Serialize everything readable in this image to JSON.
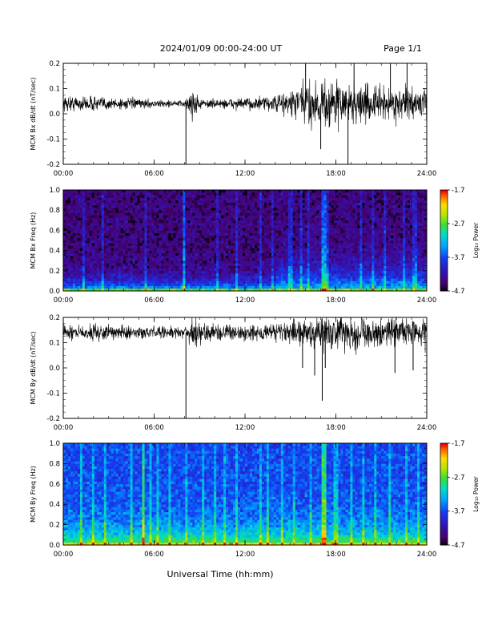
{
  "header": {
    "title": "2024/01/09  00:00-24:00 UT",
    "page": "Page 1/1"
  },
  "xlabel": "Universal Time (hh:mm)",
  "chart_data": [
    {
      "type": "line",
      "ylabel": "MCM Bx dB/dt (nT/sec)",
      "xlim": [
        0,
        24
      ],
      "ylim": [
        -0.2,
        0.2
      ],
      "x_ticks": [
        "00:00",
        "06:00",
        "12:00",
        "18:00",
        "24:00"
      ],
      "y_ticks": [
        "-0.2",
        "-0.1",
        "0.0",
        "0.1",
        "0.2"
      ],
      "y_tick_values": [
        -0.2,
        -0.1,
        0.0,
        0.1,
        0.2
      ],
      "baseline": 0.04,
      "amplitude_envelope": [
        {
          "x": 0,
          "amp": 0.03
        },
        {
          "x": 2,
          "amp": 0.028
        },
        {
          "x": 4,
          "amp": 0.022
        },
        {
          "x": 6,
          "amp": 0.014
        },
        {
          "x": 8,
          "amp": 0.012
        },
        {
          "x": 8.5,
          "amp": 0.06
        },
        {
          "x": 9.2,
          "amp": 0.015
        },
        {
          "x": 12,
          "amp": 0.022
        },
        {
          "x": 14,
          "amp": 0.03
        },
        {
          "x": 15.5,
          "amp": 0.07
        },
        {
          "x": 17,
          "amp": 0.1
        },
        {
          "x": 18,
          "amp": 0.09
        },
        {
          "x": 20,
          "amp": 0.07
        },
        {
          "x": 22,
          "amp": 0.06
        },
        {
          "x": 24,
          "amp": 0.05
        }
      ],
      "spikes": [
        {
          "x": 8.1,
          "y": -0.2
        },
        {
          "x": 16.0,
          "y": 0.2
        },
        {
          "x": 17.0,
          "y": -0.14
        },
        {
          "x": 18.8,
          "y": -0.2
        },
        {
          "x": 19.2,
          "y": 0.2
        },
        {
          "x": 21.6,
          "y": 0.2
        },
        {
          "x": 22.7,
          "y": 0.2
        }
      ]
    },
    {
      "type": "heatmap",
      "ylabel": "MCM Bx Freq (Hz)",
      "xlim": [
        0,
        24
      ],
      "ylim": [
        0,
        1.0
      ],
      "x_ticks": [
        "00:00",
        "06:00",
        "12:00",
        "18:00",
        "24:00"
      ],
      "y_ticks": [
        "0.0",
        "0.2",
        "0.4",
        "0.6",
        "0.8",
        "1.0"
      ],
      "y_tick_values": [
        0,
        0.2,
        0.4,
        0.6,
        0.8,
        1.0
      ],
      "colorbar": {
        "label": "Log₁₀ Power",
        "min": -4.7,
        "max": -1.7,
        "ticks": [
          "-1.7",
          "-2.7",
          "-3.7",
          "-4.7"
        ]
      },
      "background_level": -4.4,
      "low_freq_level": -3.0,
      "active_hours": [
        14,
        24
      ],
      "streaks": [
        1.3,
        2.6,
        5.4,
        8.0,
        10.2,
        11.5,
        13.0,
        13.8,
        15.0,
        15.7,
        16.2,
        17.2,
        17.5,
        19.6,
        20.4,
        21.3,
        22.5,
        23.2
      ],
      "bright_streaks": [
        8.0,
        17.2
      ]
    },
    {
      "type": "line",
      "ylabel": "MCM By dB/dt (nT/sec)",
      "xlim": [
        0,
        24
      ],
      "ylim": [
        -0.2,
        0.2
      ],
      "x_ticks": [
        "00:00",
        "06:00",
        "12:00",
        "18:00",
        "24:00"
      ],
      "y_ticks": [
        "-0.2",
        "-0.1",
        "0.0",
        "0.1",
        "0.2"
      ],
      "y_tick_values": [
        -0.2,
        -0.1,
        0.0,
        0.1,
        0.2
      ],
      "baseline": 0.14,
      "amplitude_envelope": [
        {
          "x": 0,
          "amp": 0.03
        },
        {
          "x": 3,
          "amp": 0.028
        },
        {
          "x": 6,
          "amp": 0.022
        },
        {
          "x": 8,
          "amp": 0.025
        },
        {
          "x": 8.5,
          "amp": 0.06
        },
        {
          "x": 10,
          "amp": 0.03
        },
        {
          "x": 12,
          "amp": 0.03
        },
        {
          "x": 14,
          "amp": 0.035
        },
        {
          "x": 16,
          "amp": 0.06
        },
        {
          "x": 17.5,
          "amp": 0.08
        },
        {
          "x": 20,
          "amp": 0.06
        },
        {
          "x": 24,
          "amp": 0.05
        }
      ],
      "spikes": [
        {
          "x": 8.1,
          "y": -0.2
        },
        {
          "x": 15.8,
          "y": 0.0
        },
        {
          "x": 16.6,
          "y": -0.03
        },
        {
          "x": 17.1,
          "y": -0.13
        },
        {
          "x": 17.3,
          "y": 0.0
        },
        {
          "x": 21.9,
          "y": -0.02
        },
        {
          "x": 23.1,
          "y": -0.01
        }
      ]
    },
    {
      "type": "heatmap",
      "ylabel": "MCM By Freq (Hz)",
      "xlim": [
        0,
        24
      ],
      "ylim": [
        0,
        1.0
      ],
      "x_ticks": [
        "00:00",
        "06:00",
        "12:00",
        "18:00",
        "24:00"
      ],
      "y_ticks": [
        "0.0",
        "0.2",
        "0.4",
        "0.6",
        "0.8",
        "1.0"
      ],
      "y_tick_values": [
        0,
        0.2,
        0.4,
        0.6,
        0.8,
        1.0
      ],
      "colorbar": {
        "label": "Log₁₀ Power",
        "min": -4.7,
        "max": -1.7,
        "ticks": [
          "-1.7",
          "-2.7",
          "-3.7",
          "-4.7"
        ]
      },
      "background_level": -3.7,
      "low_freq_level": -2.6,
      "active_hours": [
        0,
        24
      ],
      "streaks": [
        1.2,
        2.0,
        2.8,
        4.5,
        5.3,
        5.7,
        6.2,
        7.0,
        8.1,
        9.3,
        10.0,
        10.7,
        11.4,
        13.0,
        13.5,
        14.5,
        15.3,
        16.4,
        17.2,
        18.0,
        19.0,
        19.8,
        20.6,
        21.5,
        22.6,
        23.4
      ],
      "bright_streaks": [
        5.3,
        17.2
      ]
    }
  ]
}
